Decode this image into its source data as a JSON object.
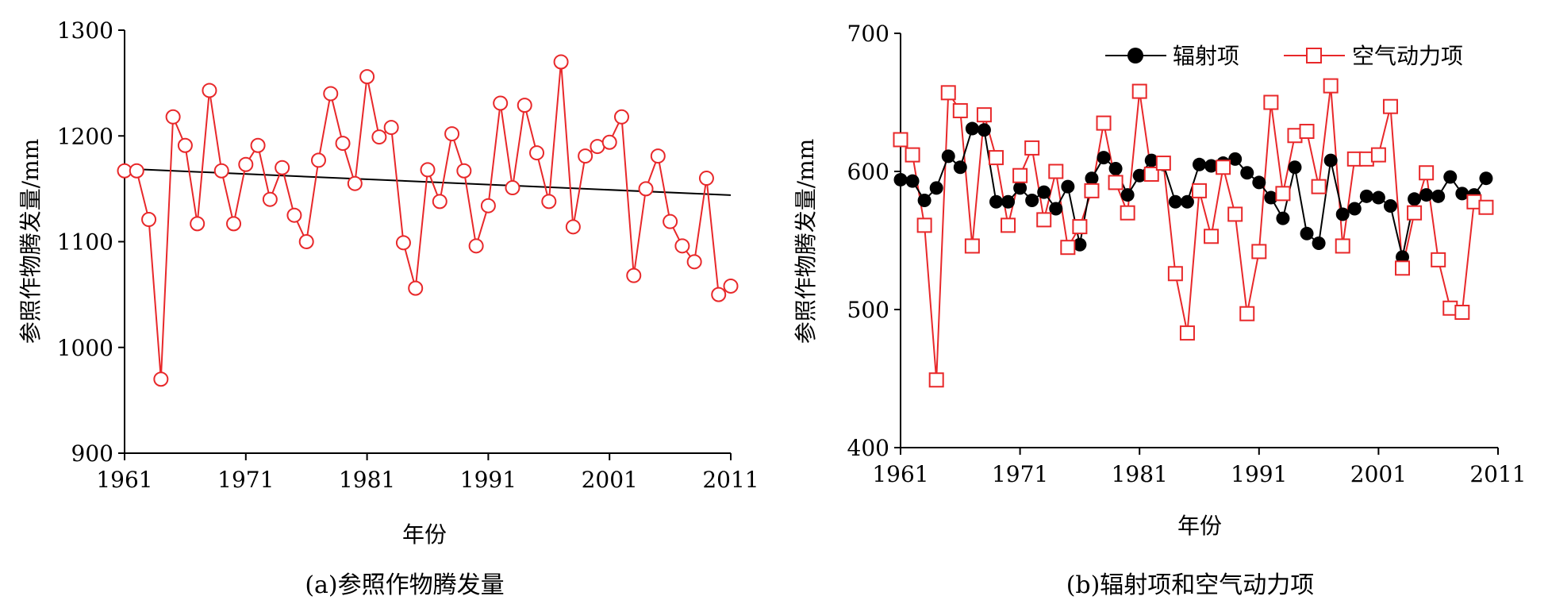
{
  "chart_data": [
    {
      "type": "line",
      "caption": "(a)参照作物腾发量",
      "xlabel": "年份",
      "ylabel": "参照作物腾发量/mm",
      "xlim": [
        1961,
        2011
      ],
      "ylim": [
        900,
        1300
      ],
      "xticks": [
        "1961",
        "1971",
        "1981",
        "1991",
        "2001",
        "2011"
      ],
      "yticks": [
        "900",
        "1000",
        "1100",
        "1200",
        "1300"
      ],
      "grid": false,
      "colors": {
        "series": "#e8282a",
        "trend": "#000000"
      },
      "x": [
        1961,
        1962,
        1963,
        1964,
        1965,
        1966,
        1967,
        1968,
        1969,
        1970,
        1971,
        1972,
        1973,
        1974,
        1975,
        1976,
        1977,
        1978,
        1979,
        1980,
        1981,
        1982,
        1983,
        1984,
        1985,
        1986,
        1987,
        1988,
        1989,
        1990,
        1991,
        1992,
        1993,
        1994,
        1995,
        1996,
        1997,
        1998,
        1999,
        2000,
        2001,
        2002,
        2003,
        2004,
        2005,
        2006,
        2007,
        2008,
        2009,
        2010,
        2011
      ],
      "series": [
        {
          "values": [
            1167,
            1167,
            1121,
            970,
            1218,
            1191,
            1117,
            1243,
            1167,
            1117,
            1173,
            1191,
            1140,
            1170,
            1125,
            1100,
            1177,
            1240,
            1193,
            1155,
            1256,
            1199,
            1208,
            1099,
            1056,
            1168,
            1138,
            1202,
            1167,
            1096,
            1134,
            1231,
            1151,
            1229,
            1184,
            1138,
            1270,
            1114,
            1181,
            1190,
            1194,
            1218,
            1068,
            1150,
            1181,
            1119,
            1096,
            1081,
            1160,
            1050,
            1058
          ]
        }
      ],
      "trend": {
        "x": [
          1961,
          2011
        ],
        "values": [
          1169,
          1144
        ]
      }
    },
    {
      "type": "line",
      "caption": "(b)辐射项和空气动力项",
      "xlabel": "年份",
      "ylabel": "参照作物腾发量/mm",
      "xlim": [
        1961,
        2011
      ],
      "ylim": [
        400,
        700
      ],
      "xticks": [
        "1961",
        "1971",
        "1981",
        "1991",
        "2001",
        "2011"
      ],
      "yticks": [
        "400",
        "500",
        "600",
        "700"
      ],
      "grid": false,
      "legend": "top",
      "colors": {
        "radiation": "#000000",
        "aero": "#e8282a"
      },
      "x": [
        1961,
        1962,
        1963,
        1964,
        1965,
        1966,
        1967,
        1968,
        1969,
        1970,
        1971,
        1972,
        1973,
        1974,
        1975,
        1976,
        1977,
        1978,
        1979,
        1980,
        1981,
        1982,
        1983,
        1984,
        1985,
        1986,
        1987,
        1988,
        1989,
        1990,
        1991,
        1992,
        1993,
        1994,
        1995,
        1996,
        1997,
        1998,
        1999,
        2000,
        2001,
        2002,
        2003,
        2004,
        2005,
        2006,
        2007,
        2008,
        2009,
        2010
      ],
      "series": [
        {
          "name": "辐射项",
          "values": [
            594,
            593,
            579,
            588,
            611,
            603,
            631,
            630,
            578,
            578,
            588,
            579,
            585,
            573,
            589,
            547,
            595,
            610,
            602,
            583,
            597,
            608,
            605,
            578,
            578,
            605,
            604,
            606,
            609,
            599,
            592,
            581,
            566,
            603,
            555,
            548,
            608,
            569,
            573,
            582,
            581,
            575,
            538,
            580,
            583,
            582,
            596,
            584,
            583,
            595
          ]
        },
        {
          "name": "空气动力项",
          "values": [
            623,
            612,
            561,
            449,
            657,
            644,
            546,
            641,
            610,
            561,
            597,
            617,
            565,
            600,
            545,
            560,
            586,
            635,
            592,
            570,
            658,
            598,
            606,
            526,
            483,
            586,
            553,
            603,
            569,
            497,
            542,
            650,
            584,
            626,
            629,
            589,
            662,
            546,
            609,
            609,
            612,
            647,
            530,
            570,
            599,
            536,
            501,
            498,
            578,
            574
          ]
        }
      ]
    }
  ]
}
